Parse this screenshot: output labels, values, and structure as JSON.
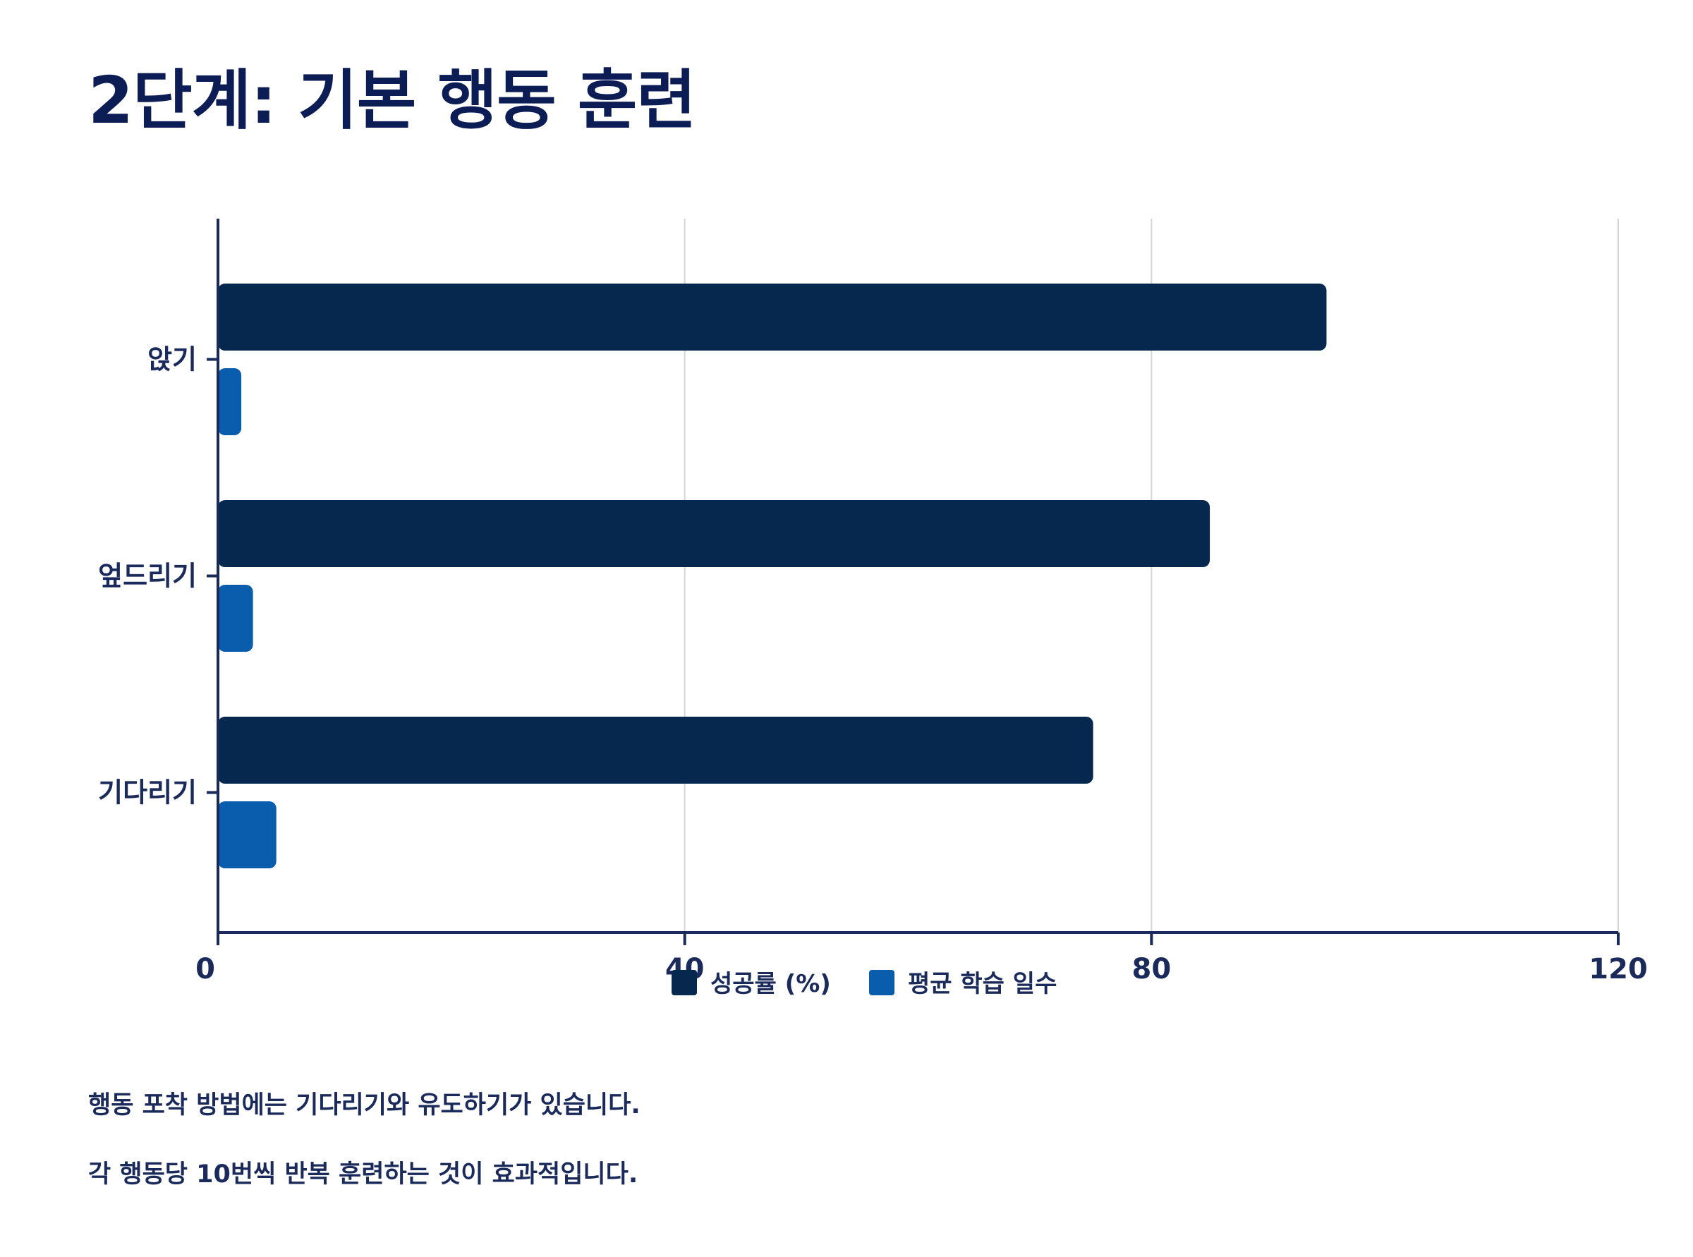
{
  "title": "2단계: 기본 행동 훈련",
  "notes": [
    "행동 포착 방법에는 기다리기와 유도하기가 있습니다.",
    "각 행동당 10번씩 반복 훈련하는 것이 효과적입니다."
  ],
  "colors": {
    "series_success": "#06284f",
    "series_days": "#0a5dad",
    "axis": "#1a2a5a",
    "grid": "#d6d6d6"
  },
  "chart_data": {
    "type": "bar",
    "orientation": "horizontal",
    "categories": [
      "앉기",
      "엎드리기",
      "기다리기"
    ],
    "series": [
      {
        "name": "성공률 (%)",
        "values": [
          95,
          85,
          75
        ]
      },
      {
        "name": "평균 학습 일수",
        "values": [
          2,
          3,
          5
        ]
      }
    ],
    "xlim": [
      0,
      120
    ],
    "xticks": [
      0,
      40,
      80,
      120
    ],
    "grid": true,
    "legend_position": "bottom-center"
  }
}
